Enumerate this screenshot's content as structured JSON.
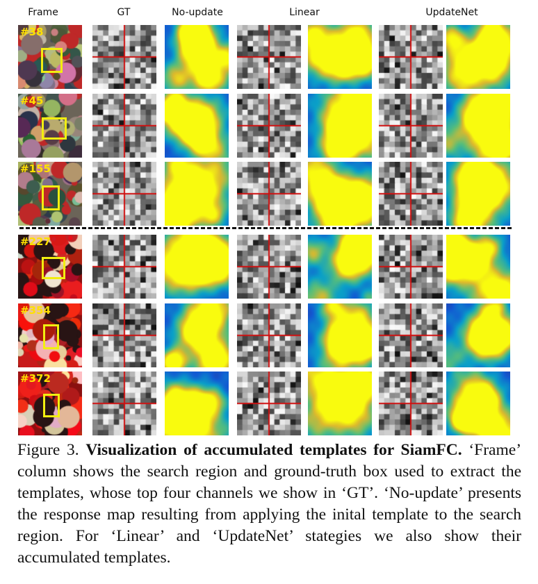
{
  "headers": {
    "frame": "Frame",
    "gt": "GT",
    "no_update": "No-update",
    "linear": "Linear",
    "updatenet": "UpdateNet"
  },
  "frames": [
    {
      "label": "#38"
    },
    {
      "label": "#45"
    },
    {
      "label": "#155"
    },
    {
      "label": "#227"
    },
    {
      "label": "#354"
    },
    {
      "label": "#372"
    }
  ],
  "caption": {
    "figure_label": "Figure 3.",
    "title": "Visualization of accumulated templates for SiamFC.",
    "body": "‘Frame’ column shows the search region and ground-truth box used to extract the templates, whose top four channels we show in ‘GT’. ‘No-update’ presents the response map resulting from applying the inital template to the search region. For ‘Linear’ and ‘UpdateNet’ stategies we also show their accumulated templates."
  },
  "colors": {
    "grid_red": "#d01010",
    "box_yellow": "#f2ee10",
    "label_yellow": "#ffe000",
    "separator": "#111111"
  }
}
